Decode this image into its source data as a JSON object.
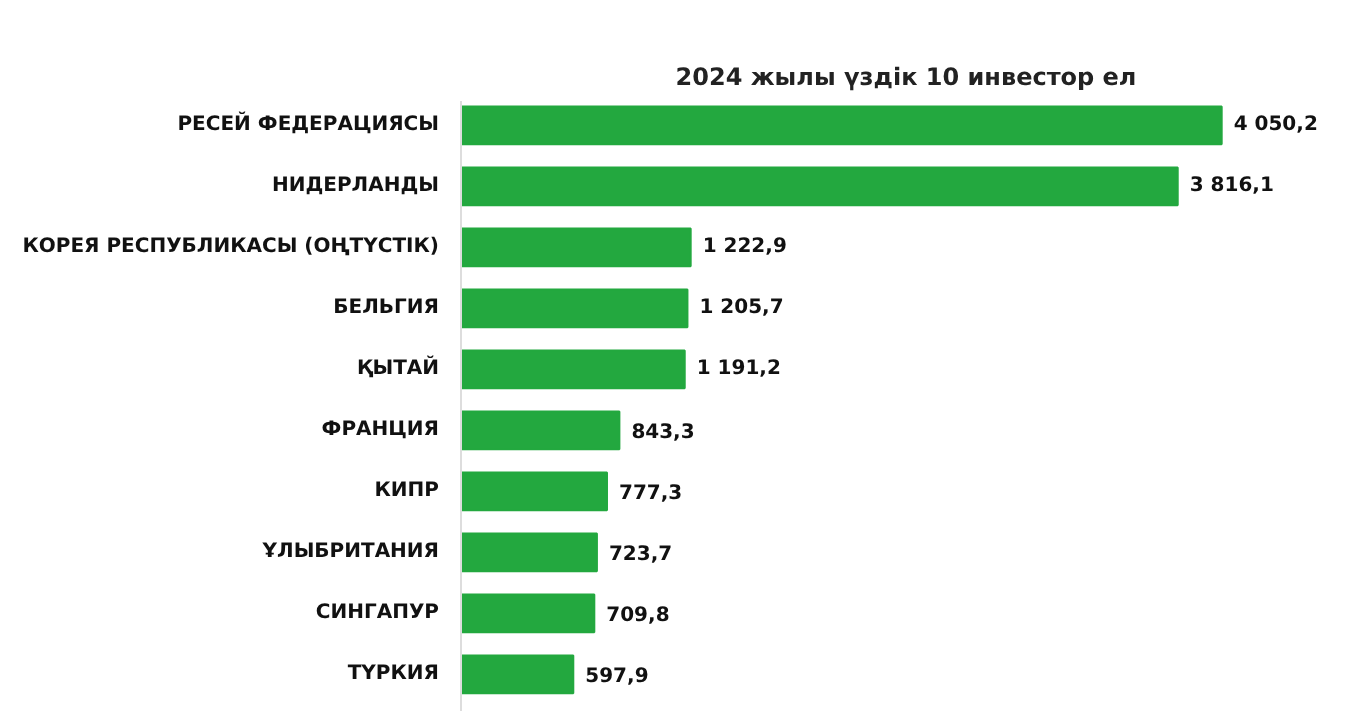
{
  "chart_data": {
    "type": "bar",
    "orientation": "horizontal",
    "title": "2024 жылы үздік 10 инвестор ел",
    "categories": [
      "РЕСЕЙ ФЕДЕРАЦИЯСЫ",
      "НИДЕРЛАНДЫ",
      "КОРЕЯ РЕСПУБЛИКАСЫ (ОҢТҮСТІК)",
      "БЕЛЬГИЯ",
      "ҚЫТАЙ",
      "ФРАНЦИЯ",
      "КИПР",
      "ҰЛЫБРИТАНИЯ",
      "СИНГАПУР",
      "ТҮРКИЯ"
    ],
    "values": [
      4050.2,
      3816.1,
      1222.9,
      1205.7,
      1191.2,
      843.3,
      777.3,
      723.7,
      709.8,
      597.9
    ],
    "value_labels": [
      "4 050,2",
      "3 816,1",
      "1 222,9",
      "1 205,7",
      "1 191,2",
      "843,3",
      "777,3",
      "723,7",
      "709,8",
      "597,9"
    ],
    "color": "#23a83f",
    "grid": false
  }
}
